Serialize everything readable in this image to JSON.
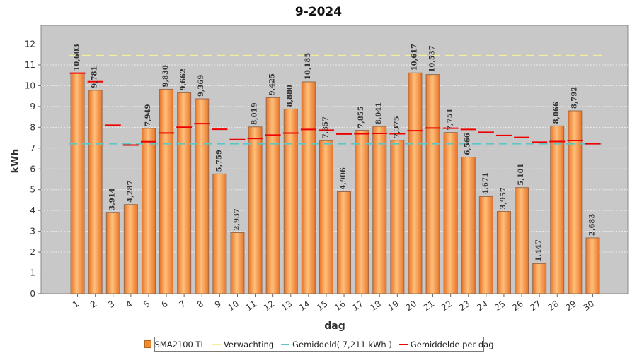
{
  "chart_data": {
    "type": "bar",
    "title": "9-2024",
    "xlabel": "dag",
    "ylabel": "kWh",
    "ylim": [
      0,
      12.9
    ],
    "yticks": [
      0,
      1,
      2,
      3,
      4,
      5,
      6,
      7,
      8,
      9,
      10,
      11,
      12
    ],
    "categories": [
      "1",
      "2",
      "3",
      "4",
      "5",
      "6",
      "7",
      "8",
      "9",
      "10",
      "11",
      "12",
      "13",
      "14",
      "15",
      "16",
      "17",
      "18",
      "19",
      "20",
      "21",
      "22",
      "23",
      "24",
      "25",
      "26",
      "27",
      "28",
      "29",
      "30"
    ],
    "series": [
      {
        "name": "SMA2100 TL",
        "type": "bar",
        "color": "#f28a2e",
        "values": [
          10.603,
          9.781,
          3.914,
          4.287,
          7.949,
          9.83,
          9.662,
          9.369,
          5.759,
          2.937,
          8.019,
          9.425,
          8.88,
          10.185,
          7.357,
          4.906,
          7.855,
          8.041,
          7.375,
          10.617,
          10.537,
          7.751,
          6.566,
          4.671,
          3.957,
          5.101,
          1.447,
          8.066,
          8.792,
          2.683
        ],
        "labels": [
          "10,603",
          "9,781",
          "3,914",
          "4,287",
          "7,949",
          "9,830",
          "9,662",
          "9,369",
          "5,759",
          "2,937",
          "8,019",
          "9,425",
          "8,880",
          "10,185",
          "7,357",
          "4,906",
          "7,855",
          "8,041",
          "7,375",
          "10,617",
          "10,537",
          "7,751",
          "6,566",
          "4,671",
          "3,957",
          "5,101",
          "1,447",
          "8,066",
          "8,792",
          "2,683"
        ]
      },
      {
        "name": "Verwachting",
        "type": "dashed-line",
        "color": "#f2ee9a",
        "value": 11.45
      },
      {
        "name": "Gemiddeld( 7,211 kWh )",
        "type": "dashed-line",
        "color": "#5fc6c6",
        "value": 7.211
      },
      {
        "name": "Gemiddelde per dag",
        "type": "step",
        "color": "#ee0000",
        "values": [
          10.603,
          10.192,
          8.099,
          7.146,
          7.307,
          7.728,
          8.004,
          8.175,
          7.906,
          7.409,
          7.465,
          7.627,
          7.723,
          7.899,
          7.863,
          7.678,
          7.688,
          7.707,
          7.69,
          7.836,
          7.965,
          7.955,
          7.895,
          7.761,
          7.609,
          7.513,
          7.288,
          7.316,
          7.367,
          7.211
        ]
      }
    ],
    "grid": true,
    "legend_position": "bottom-center"
  }
}
